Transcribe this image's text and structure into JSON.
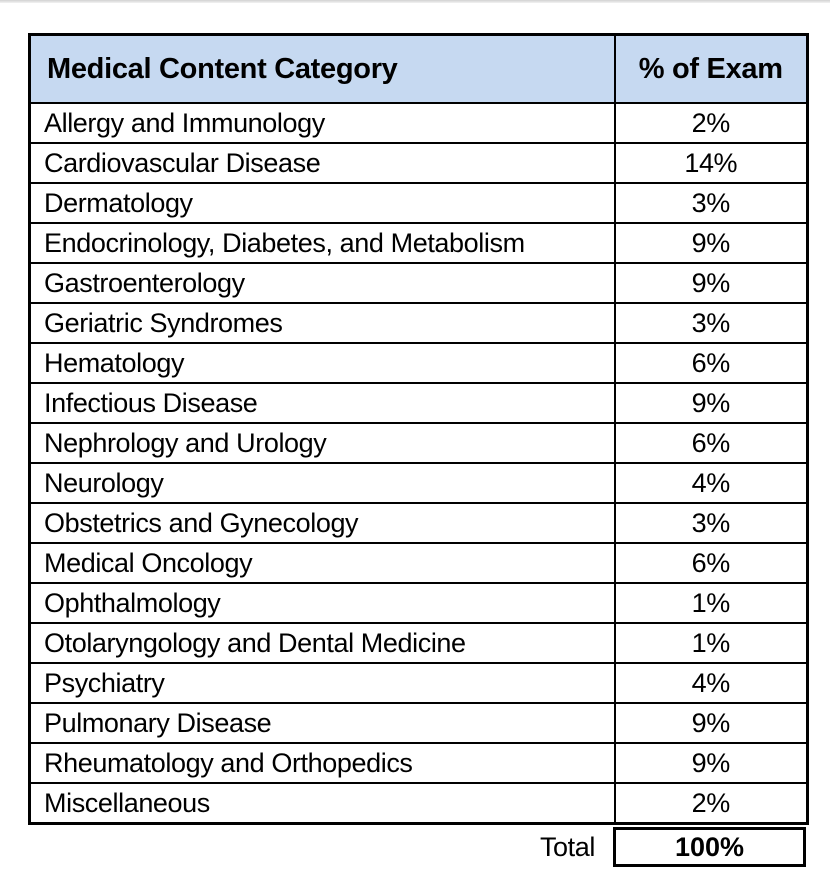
{
  "page": {
    "background_color": "#ffffff",
    "scan_strip_color": "#d2d2d2"
  },
  "table": {
    "border_color": "#000000",
    "header": {
      "category_label": "Medical Content Category",
      "percent_label": "% of Exam",
      "background_color": "#c6d9f1"
    },
    "rows": [
      {
        "category": "Allergy and Immunology",
        "percent": "2%"
      },
      {
        "category": "Cardiovascular Disease",
        "percent": "14%"
      },
      {
        "category": "Dermatology",
        "percent": "3%"
      },
      {
        "category": "Endocrinology, Diabetes, and Metabolism",
        "percent": "9%"
      },
      {
        "category": "Gastroenterology",
        "percent": "9%"
      },
      {
        "category": "Geriatric Syndromes",
        "percent": "3%"
      },
      {
        "category": "Hematology",
        "percent": "6%"
      },
      {
        "category": "Infectious Disease",
        "percent": "9%"
      },
      {
        "category": "Nephrology and Urology",
        "percent": "6%"
      },
      {
        "category": "Neurology",
        "percent": "4%"
      },
      {
        "category": "Obstetrics and Gynecology",
        "percent": "3%"
      },
      {
        "category": "Medical Oncology",
        "percent": "6%"
      },
      {
        "category": "Ophthalmology",
        "percent": "1%"
      },
      {
        "category": "Otolaryngology and Dental Medicine",
        "percent": "1%"
      },
      {
        "category": "Psychiatry",
        "percent": "4%"
      },
      {
        "category": "Pulmonary Disease",
        "percent": "9%"
      },
      {
        "category": "Rheumatology and Orthopedics",
        "percent": "9%"
      },
      {
        "category": "Miscellaneous",
        "percent": "2%"
      }
    ],
    "total": {
      "label": "Total",
      "value": "100%"
    }
  }
}
